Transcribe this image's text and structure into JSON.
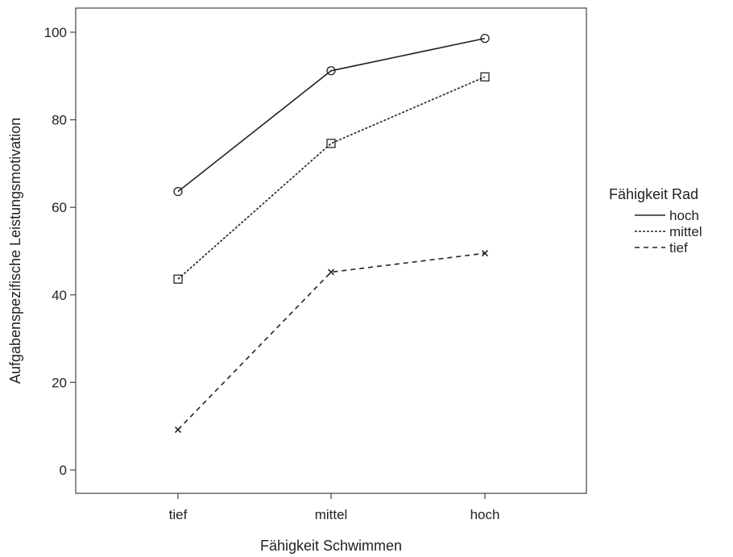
{
  "chart_data": {
    "type": "line",
    "title": "",
    "xlabel": "Fähigkeit Schwimmen",
    "ylabel": "Aufgabenspezifische Leistungsmotivation",
    "categories": [
      "tief",
      "mittel",
      "hoch"
    ],
    "yticks": [
      "0",
      "20",
      "40",
      "60",
      "80",
      "100"
    ],
    "ylim": [
      -5.5,
      105.5
    ],
    "grid": false,
    "legend": {
      "title": "Fähigkeit Rad",
      "placement": "right"
    },
    "series": [
      {
        "name": "hoch",
        "values": [
          63.6,
          91.2,
          98.6
        ],
        "line_style": "solid",
        "marker": "circle"
      },
      {
        "name": "mittel",
        "values": [
          43.6,
          74.6,
          89.8
        ],
        "line_style": "dotted",
        "marker": "square"
      },
      {
        "name": "tief",
        "values": [
          9.2,
          45.2,
          49.5
        ],
        "line_style": "dashed",
        "marker": "cross"
      }
    ],
    "colors": {
      "line": "#222222",
      "frame": "#444444",
      "background": "#ffffff"
    }
  }
}
